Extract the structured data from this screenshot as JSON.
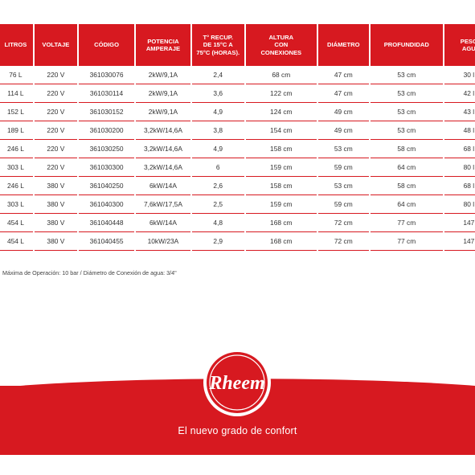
{
  "table": {
    "headers": [
      "LITROS",
      "VOLTAJE",
      "CÓDIGO",
      "POTENCIA\nAMPERAJE",
      "T° RECUP.\nDE 15°C a\n75°C (Horas).",
      "ALTURA\nCON\nCONEXIONES",
      "DIÁMETRO",
      "PROFUNDIDAD",
      "PESO\nAGU"
    ],
    "rows": [
      [
        "76 L",
        "220 V",
        "361030076",
        "2kW/9,1A",
        "2,4",
        "68 cm",
        "47 cm",
        "53 cm",
        "30 l"
      ],
      [
        "114 L",
        "220 V",
        "361030114",
        "2kW/9,1A",
        "3,6",
        "122 cm",
        "47 cm",
        "53 cm",
        "42 l"
      ],
      [
        "152 L",
        "220 V",
        "361030152",
        "2kW/9,1A",
        "4,9",
        "124 cm",
        "49 cm",
        "53 cm",
        "43 l"
      ],
      [
        "189 L",
        "220 V",
        "361030200",
        "3,2kW/14,6A",
        "3,8",
        "154 cm",
        "49 cm",
        "53 cm",
        "48 l"
      ],
      [
        "246 L",
        "220 V",
        "361030250",
        "3,2kW/14,6A",
        "4,9",
        "158 cm",
        "53 cm",
        "58 cm",
        "68 l"
      ],
      [
        "303 L",
        "220 V",
        "361030300",
        "3,2kW/14,6A",
        "6",
        "159 cm",
        "59 cm",
        "64 cm",
        "80 l"
      ],
      [
        "246 L",
        "380 V",
        "361040250",
        "6kW/14A",
        "2,6",
        "158 cm",
        "53 cm",
        "58 cm",
        "68 l"
      ],
      [
        "303 L",
        "380 V",
        "361040300",
        "7,6kW/17,5A",
        "2,5",
        "159 cm",
        "59 cm",
        "64 cm",
        "80 l"
      ],
      [
        "454 L",
        "380 V",
        "361040448",
        "6kW/14A",
        "4,8",
        "168 cm",
        "72 cm",
        "77 cm",
        "147"
      ],
      [
        "454 L",
        "380 V",
        "361040455",
        "10kW/23A",
        "2,9",
        "168 cm",
        "72 cm",
        "77 cm",
        "147"
      ]
    ]
  },
  "footnote": "Máxima de Operación: 10 bar / Diámetro de Conexión de agua: 3/4\"",
  "brand": {
    "logo_text": "Rheem",
    "tagline": "El nuevo grado de confort",
    "color": "#d71920"
  }
}
